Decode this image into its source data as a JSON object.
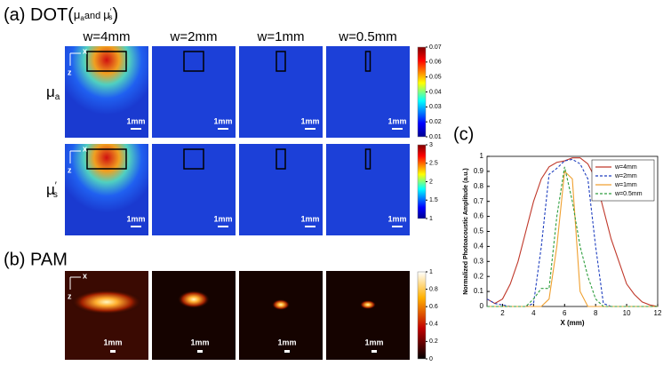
{
  "panels": {
    "a_title": [
      "(a) DOT(",
      "μ",
      "a",
      "and ",
      "μ",
      "′",
      "s",
      ")"
    ],
    "b_title": "(b) PAM",
    "c_title": "(c)",
    "columns": [
      "w=4mm",
      "w=2mm",
      "w=1mm",
      "w=0.5mm"
    ],
    "row_labels": [
      [
        "μ",
        "a"
      ],
      [
        "μ",
        "′",
        "s"
      ]
    ],
    "scale_bar": "1mm",
    "axis_x": "x",
    "axis_z": "z",
    "colorbar_mua": [
      0.01,
      0.02,
      0.03,
      0.04,
      0.05,
      0.06,
      0.07
    ],
    "colorbar_mus": [
      1,
      1.5,
      2,
      2.5,
      3
    ],
    "colorbar_pam": [
      0,
      0.2,
      0.4,
      0.6,
      0.8,
      1
    ]
  },
  "chart_data": {
    "type": "line",
    "xlabel": "X (mm)",
    "ylabel": "Normalized Photoacoustic Amplitude (a.u.)",
    "x": [
      1,
      1.5,
      2,
      2.5,
      3,
      3.5,
      4,
      4.5,
      5,
      5.5,
      6,
      6.5,
      7,
      7.5,
      8,
      8.5,
      9,
      9.5,
      10,
      10.5,
      11,
      11.5,
      12
    ],
    "series": [
      {
        "name": "w=4mm",
        "color": "#c0392b",
        "dashed": false,
        "values": [
          0.05,
          0.02,
          0.05,
          0.15,
          0.3,
          0.5,
          0.7,
          0.85,
          0.93,
          0.96,
          0.97,
          0.99,
          0.99,
          0.95,
          0.85,
          0.65,
          0.45,
          0.3,
          0.15,
          0.08,
          0.03,
          0.01,
          0
        ]
      },
      {
        "name": "w=2mm",
        "color": "#1f3fbf",
        "dashed": true,
        "values": [
          0.05,
          0.02,
          0.01,
          0,
          0,
          0,
          0.02,
          0.4,
          0.88,
          0.92,
          0.97,
          0.98,
          0.95,
          0.85,
          0.4,
          0.02,
          0,
          0,
          0,
          0,
          0,
          0,
          0
        ]
      },
      {
        "name": "w=1mm",
        "color": "#f0a030",
        "dashed": false,
        "values": [
          0,
          0,
          0,
          0,
          0,
          0,
          0,
          0,
          0.05,
          0.4,
          0.9,
          0.85,
          0.1,
          0,
          0,
          0,
          0,
          0,
          0,
          0,
          0,
          0,
          0
        ]
      },
      {
        "name": "w=0.5mm",
        "color": "#2e9e3e",
        "dashed": true,
        "values": [
          0,
          0,
          0,
          0,
          0,
          0,
          0.05,
          0.12,
          0.12,
          0.6,
          0.93,
          0.7,
          0.4,
          0.2,
          0.05,
          0,
          0,
          0,
          0,
          0,
          0,
          0,
          0
        ]
      }
    ],
    "xlim": [
      1,
      12
    ],
    "xticks": [
      2,
      4,
      6,
      8,
      10,
      12
    ],
    "ylim": [
      0,
      1
    ],
    "yticks": [
      0,
      0.1,
      0.2,
      0.3,
      0.4,
      0.5,
      0.6,
      0.7,
      0.8,
      0.9,
      1
    ],
    "legend": "upper right"
  }
}
